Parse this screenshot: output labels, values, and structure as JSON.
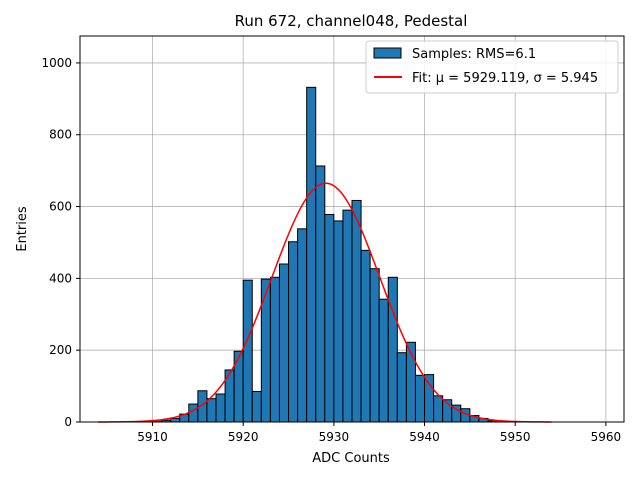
{
  "chart_data": {
    "type": "bar",
    "title": "Run 672, channel048, Pedestal",
    "xlabel": "ADC Counts",
    "ylabel": "Entries",
    "xlim": [
      5902,
      5962
    ],
    "ylim": [
      0,
      1075
    ],
    "xticks": [
      5910,
      5920,
      5930,
      5940,
      5950,
      5960
    ],
    "yticks": [
      0,
      200,
      400,
      600,
      800,
      1000
    ],
    "grid": true,
    "legend_position": "top-right",
    "bin_width": 1,
    "series": [
      {
        "name": "Samples: RMS=6.1",
        "kind": "histogram",
        "color": "#1f77b4",
        "edge_color": "#000000",
        "bins": [
          {
            "x": 5910,
            "y": 2
          },
          {
            "x": 5911,
            "y": 5
          },
          {
            "x": 5912,
            "y": 10
          },
          {
            "x": 5913,
            "y": 22
          },
          {
            "x": 5914,
            "y": 50
          },
          {
            "x": 5915,
            "y": 87
          },
          {
            "x": 5916,
            "y": 65
          },
          {
            "x": 5917,
            "y": 78
          },
          {
            "x": 5918,
            "y": 145
          },
          {
            "x": 5919,
            "y": 197
          },
          {
            "x": 5920,
            "y": 395
          },
          {
            "x": 5921,
            "y": 85
          },
          {
            "x": 5922,
            "y": 398
          },
          {
            "x": 5923,
            "y": 403
          },
          {
            "x": 5924,
            "y": 440
          },
          {
            "x": 5925,
            "y": 502
          },
          {
            "x": 5926,
            "y": 538
          },
          {
            "x": 5927,
            "y": 932
          },
          {
            "x": 5928,
            "y": 713
          },
          {
            "x": 5929,
            "y": 578
          },
          {
            "x": 5930,
            "y": 560
          },
          {
            "x": 5931,
            "y": 590
          },
          {
            "x": 5932,
            "y": 617
          },
          {
            "x": 5933,
            "y": 478
          },
          {
            "x": 5934,
            "y": 427
          },
          {
            "x": 5935,
            "y": 342
          },
          {
            "x": 5936,
            "y": 403
          },
          {
            "x": 5937,
            "y": 193
          },
          {
            "x": 5938,
            "y": 222
          },
          {
            "x": 5939,
            "y": 130
          },
          {
            "x": 5940,
            "y": 132
          },
          {
            "x": 5941,
            "y": 73
          },
          {
            "x": 5942,
            "y": 62
          },
          {
            "x": 5943,
            "y": 47
          },
          {
            "x": 5944,
            "y": 37
          },
          {
            "x": 5945,
            "y": 18
          },
          {
            "x": 5946,
            "y": 10
          },
          {
            "x": 5947,
            "y": 3
          }
        ]
      },
      {
        "name": "Fit: μ = 5929.119, σ = 5.945",
        "kind": "line",
        "color": "#ff0000",
        "function": "gaussian",
        "mu": 5929.119,
        "sigma": 5.945,
        "amplitude": 665,
        "x_range": [
          5904,
          5954
        ]
      }
    ]
  }
}
